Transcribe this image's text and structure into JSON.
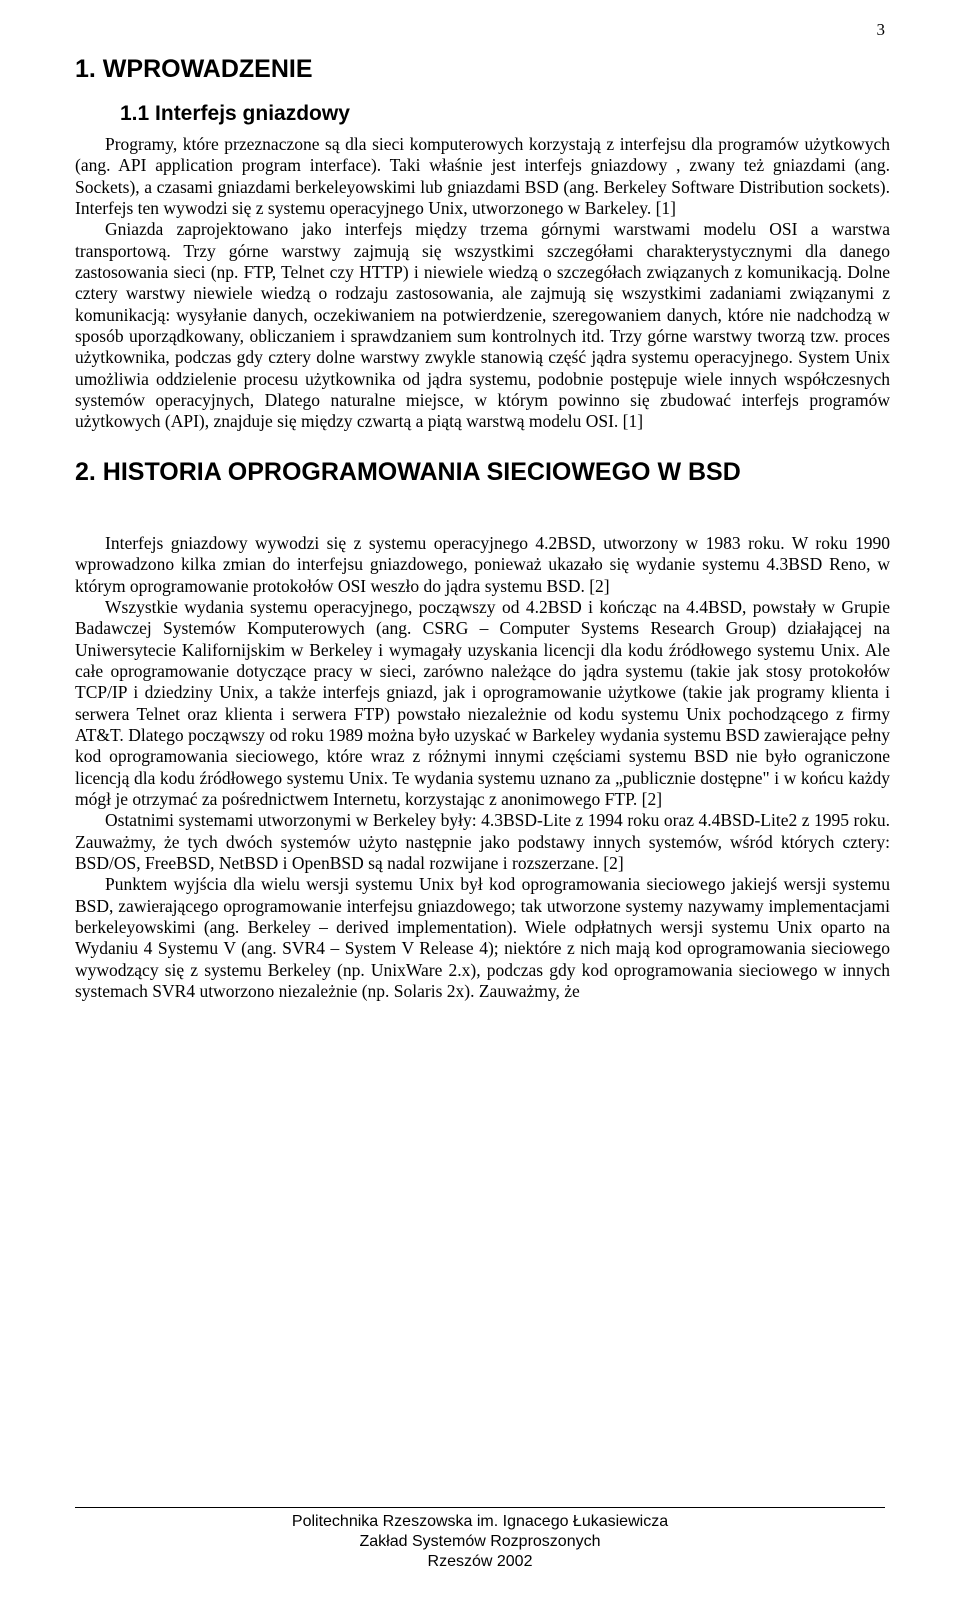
{
  "page_number": "3",
  "section1": {
    "heading": "1. WPROWADZENIE",
    "subsection": {
      "heading": "1.1 Interfejs gniazdowy",
      "paragraph1": "Programy, które przeznaczone są dla sieci komputerowych korzystają z interfejsu dla programów użytkowych (ang. API application program interface). Taki właśnie jest interfejs gniazdowy , zwany też gniazdami (ang. Sockets), a czasami gniazdami berkeleyowskimi lub gniazdami BSD (ang. Berkeley Software Distribution sockets). Interfejs ten wywodzi się z systemu operacyjnego Unix, utworzonego w Barkeley. [1]",
      "paragraph2": "Gniazda zaprojektowano jako interfejs między trzema górnymi warstwami modelu OSI a warstwa transportową. Trzy górne warstwy zajmują się wszystkimi szczegółami charakterystycznymi dla danego zastosowania sieci (np. FTP, Telnet czy HTTP) i niewiele wiedzą o szczegółach związanych z komunikacją. Dolne cztery warstwy niewiele wiedzą o rodzaju zastosowania, ale zajmują się wszystkimi zadaniami związanymi z komunikacją: wysyłanie danych, oczekiwaniem na potwierdzenie, szeregowaniem danych, które nie nadchodzą w sposób uporządkowany, obliczaniem i sprawdzaniem sum kontrolnych itd. Trzy górne warstwy tworzą tzw. proces użytkownika, podczas gdy cztery dolne warstwy zwykle stanowią część jądra systemu operacyjnego. System Unix umożliwia oddzielenie procesu użytkownika od jądra systemu, podobnie postępuje wiele innych współczesnych systemów operacyjnych, Dlatego naturalne miejsce, w którym powinno się zbudować interfejs programów użytkowych (API), znajduje się między czwartą a piątą warstwą modelu OSI. [1]"
    }
  },
  "section2": {
    "heading": "2. HISTORIA OPROGRAMOWANIA SIECIOWEGO W BSD",
    "paragraph1": "Interfejs gniazdowy wywodzi się z systemu operacyjnego 4.2BSD, utworzony w 1983 roku. W roku 1990 wprowadzono kilka zmian do interfejsu gniazdowego, ponieważ ukazało się wydanie systemu 4.3BSD Reno, w którym oprogramowanie protokołów OSI weszło do jądra systemu BSD. [2]",
    "paragraph2": "Wszystkie wydania systemu operacyjnego, począwszy od 4.2BSD i kończąc na 4.4BSD, powstały w Grupie Badawczej Systemów Komputerowych (ang. CSRG – Computer Systems Research Group) działającej na Uniwersytecie Kalifornijskim w Berkeley i wymagały uzyskania licencji dla kodu źródłowego systemu Unix. Ale całe oprogramowanie dotyczące pracy w sieci, zarówno należące do jądra systemu (takie jak stosy protokołów TCP/IP i dziedziny Unix, a także interfejs gniazd, jak i oprogramowanie użytkowe (takie jak programy klienta i serwera Telnet oraz klienta i serwera FTP) powstało niezależnie od kodu systemu Unix pochodzącego z firmy AT&T. Dlatego począwszy od roku 1989 można było uzyskać w Barkeley wydania systemu BSD zawierające pełny kod oprogramowania sieciowego, które wraz z różnymi innymi częściami systemu BSD nie było ograniczone licencją dla kodu źródłowego systemu Unix. Te wydania systemu uznano za „publicznie dostępne\"   i w końcu każdy mógł je otrzymać za pośrednictwem Internetu, korzystając z anonimowego FTP. [2]",
    "paragraph3": "Ostatnimi systemami utworzonymi w Berkeley były: 4.3BSD-Lite z 1994 roku oraz 4.4BSD-Lite2 z 1995 roku. Zauważmy, że tych dwóch systemów użyto następnie jako podstawy innych systemów, wśród których cztery: BSD/OS, FreeBSD, NetBSD i OpenBSD są nadal rozwijane i rozszerzane. [2]",
    "paragraph4": "Punktem wyjścia dla wielu wersji systemu Unix był kod oprogramowania sieciowego jakiejś wersji systemu BSD, zawierającego oprogramowanie interfejsu gniazdowego; tak utworzone systemy nazywamy implementacjami berkeleyowskimi (ang. Berkeley – derived implementation). Wiele odpłatnych wersji systemu Unix oparto na Wydaniu 4 Systemu V (ang. SVR4 – System V Release 4); niektóre z nich mają kod oprogramowania sieciowego wywodzący się z systemu Berkeley (np. UnixWare 2.x), podczas gdy kod oprogramowania sieciowego w innych systemach SVR4 utworzono niezależnie (np. Solaris 2x). Zauważmy, że"
  },
  "footer": {
    "line1": "Politechnika Rzeszowska im. Ignacego Łukasiewicza",
    "line2": "Zakład Systemów Rozproszonych",
    "line3": "Rzeszów 2002"
  },
  "colors": {
    "text": "#000000",
    "background": "#ffffff"
  },
  "fonts": {
    "heading_family": "Arial, Helvetica, sans-serif",
    "body_family": "Times New Roman, Times, serif",
    "heading_size_pt": 18,
    "subheading_size_pt": 15,
    "body_size_pt": 13,
    "footer_size_pt": 12
  }
}
